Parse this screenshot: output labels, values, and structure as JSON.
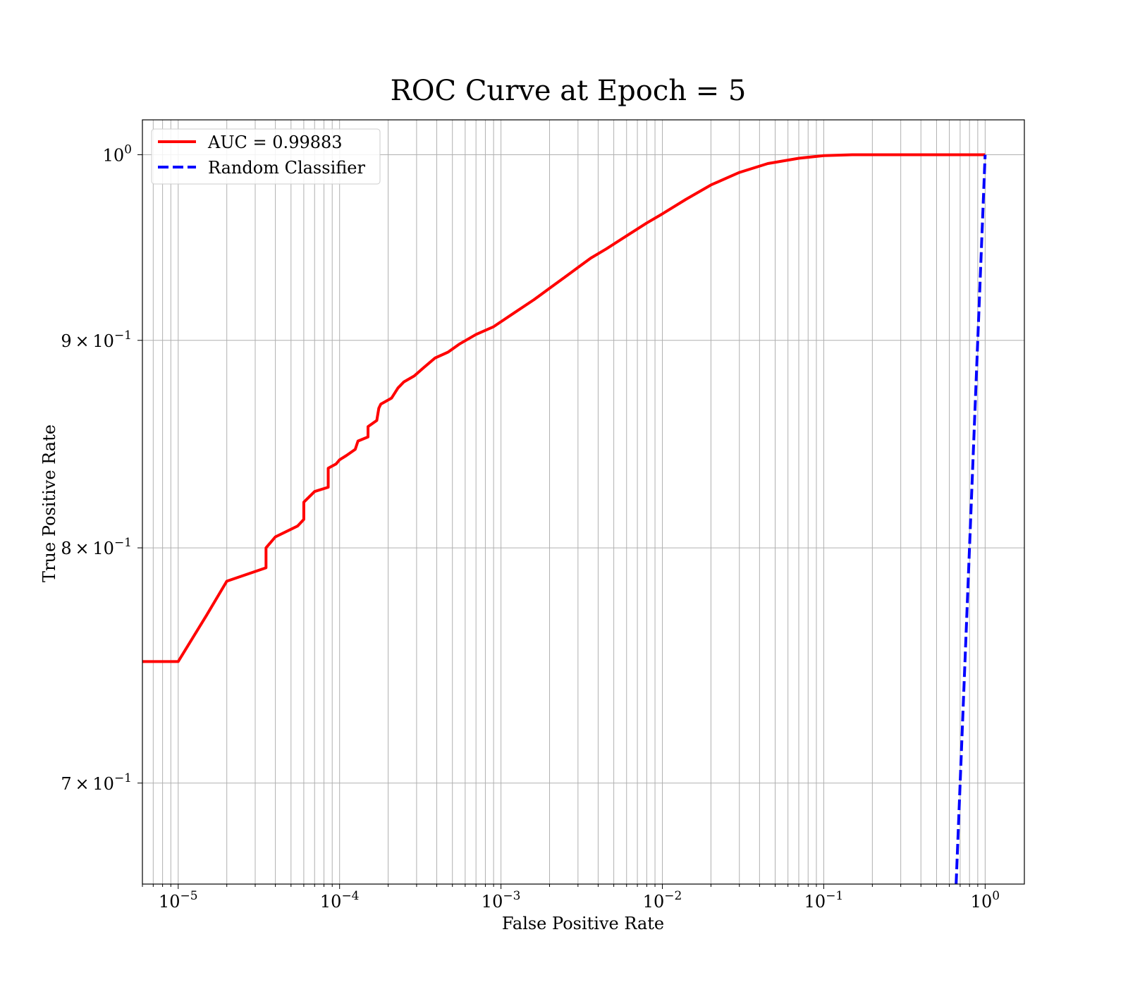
{
  "chart_data": {
    "type": "line",
    "title": "ROC Curve at Epoch = 5",
    "xlabel": "False Positive Rate",
    "ylabel": "True Positive Rate",
    "xscale": "log",
    "yscale": "log",
    "xlim": [
      6e-06,
      1.75
    ],
    "ylim": [
      0.661,
      1.02
    ],
    "grid": true,
    "grid_minor": true,
    "legend_position": "top-left",
    "x_tick_labels": [
      "10^-5",
      "10^-4",
      "10^-3",
      "10^-2",
      "10^-1",
      "10^0"
    ],
    "y_tick_labels": [
      "7 × 10^-1",
      "8 × 10^-1",
      "9 × 10^-1",
      "10^0"
    ],
    "series": [
      {
        "name": "AUC = 0.99883",
        "color": "#ff0000",
        "style": "solid",
        "x": [
          6e-06,
          1e-05,
          1.5e-05,
          2e-05,
          3.5e-05,
          3.5e-05,
          4e-05,
          5.5e-05,
          6e-05,
          6e-05,
          7e-05,
          8.5e-05,
          8.5e-05,
          9.5e-05,
          0.0001,
          0.00011,
          0.000125,
          0.00013,
          0.00015,
          0.00015,
          0.00017,
          0.000175,
          0.00018,
          0.00021,
          0.00023,
          0.00025,
          0.00029,
          0.00033,
          0.00039,
          0.00047,
          0.00055,
          0.0007,
          0.0009,
          0.0012,
          0.0016,
          0.002,
          0.0025,
          0.003,
          0.0036,
          0.0045,
          0.006,
          0.008,
          0.01,
          0.014,
          0.02,
          0.03,
          0.045,
          0.07,
          0.1,
          0.15,
          0.2,
          0.3,
          0.5,
          0.7,
          1.0
        ],
        "y": [
          0.75,
          0.75,
          0.77,
          0.785,
          0.791,
          0.8,
          0.805,
          0.81,
          0.813,
          0.821,
          0.826,
          0.828,
          0.837,
          0.839,
          0.841,
          0.843,
          0.846,
          0.85,
          0.852,
          0.857,
          0.86,
          0.866,
          0.868,
          0.871,
          0.876,
          0.879,
          0.882,
          0.886,
          0.891,
          0.894,
          0.898,
          0.903,
          0.907,
          0.914,
          0.921,
          0.927,
          0.933,
          0.938,
          0.943,
          0.948,
          0.955,
          0.962,
          0.967,
          0.975,
          0.983,
          0.99,
          0.995,
          0.998,
          0.9995,
          1.0,
          1.0,
          1.0,
          1.0,
          1.0,
          1.0
        ]
      },
      {
        "name": "Random Classifier",
        "color": "#0000ff",
        "style": "dashed",
        "x": [
          0.661,
          1.0
        ],
        "y": [
          0.661,
          1.0
        ]
      }
    ]
  }
}
